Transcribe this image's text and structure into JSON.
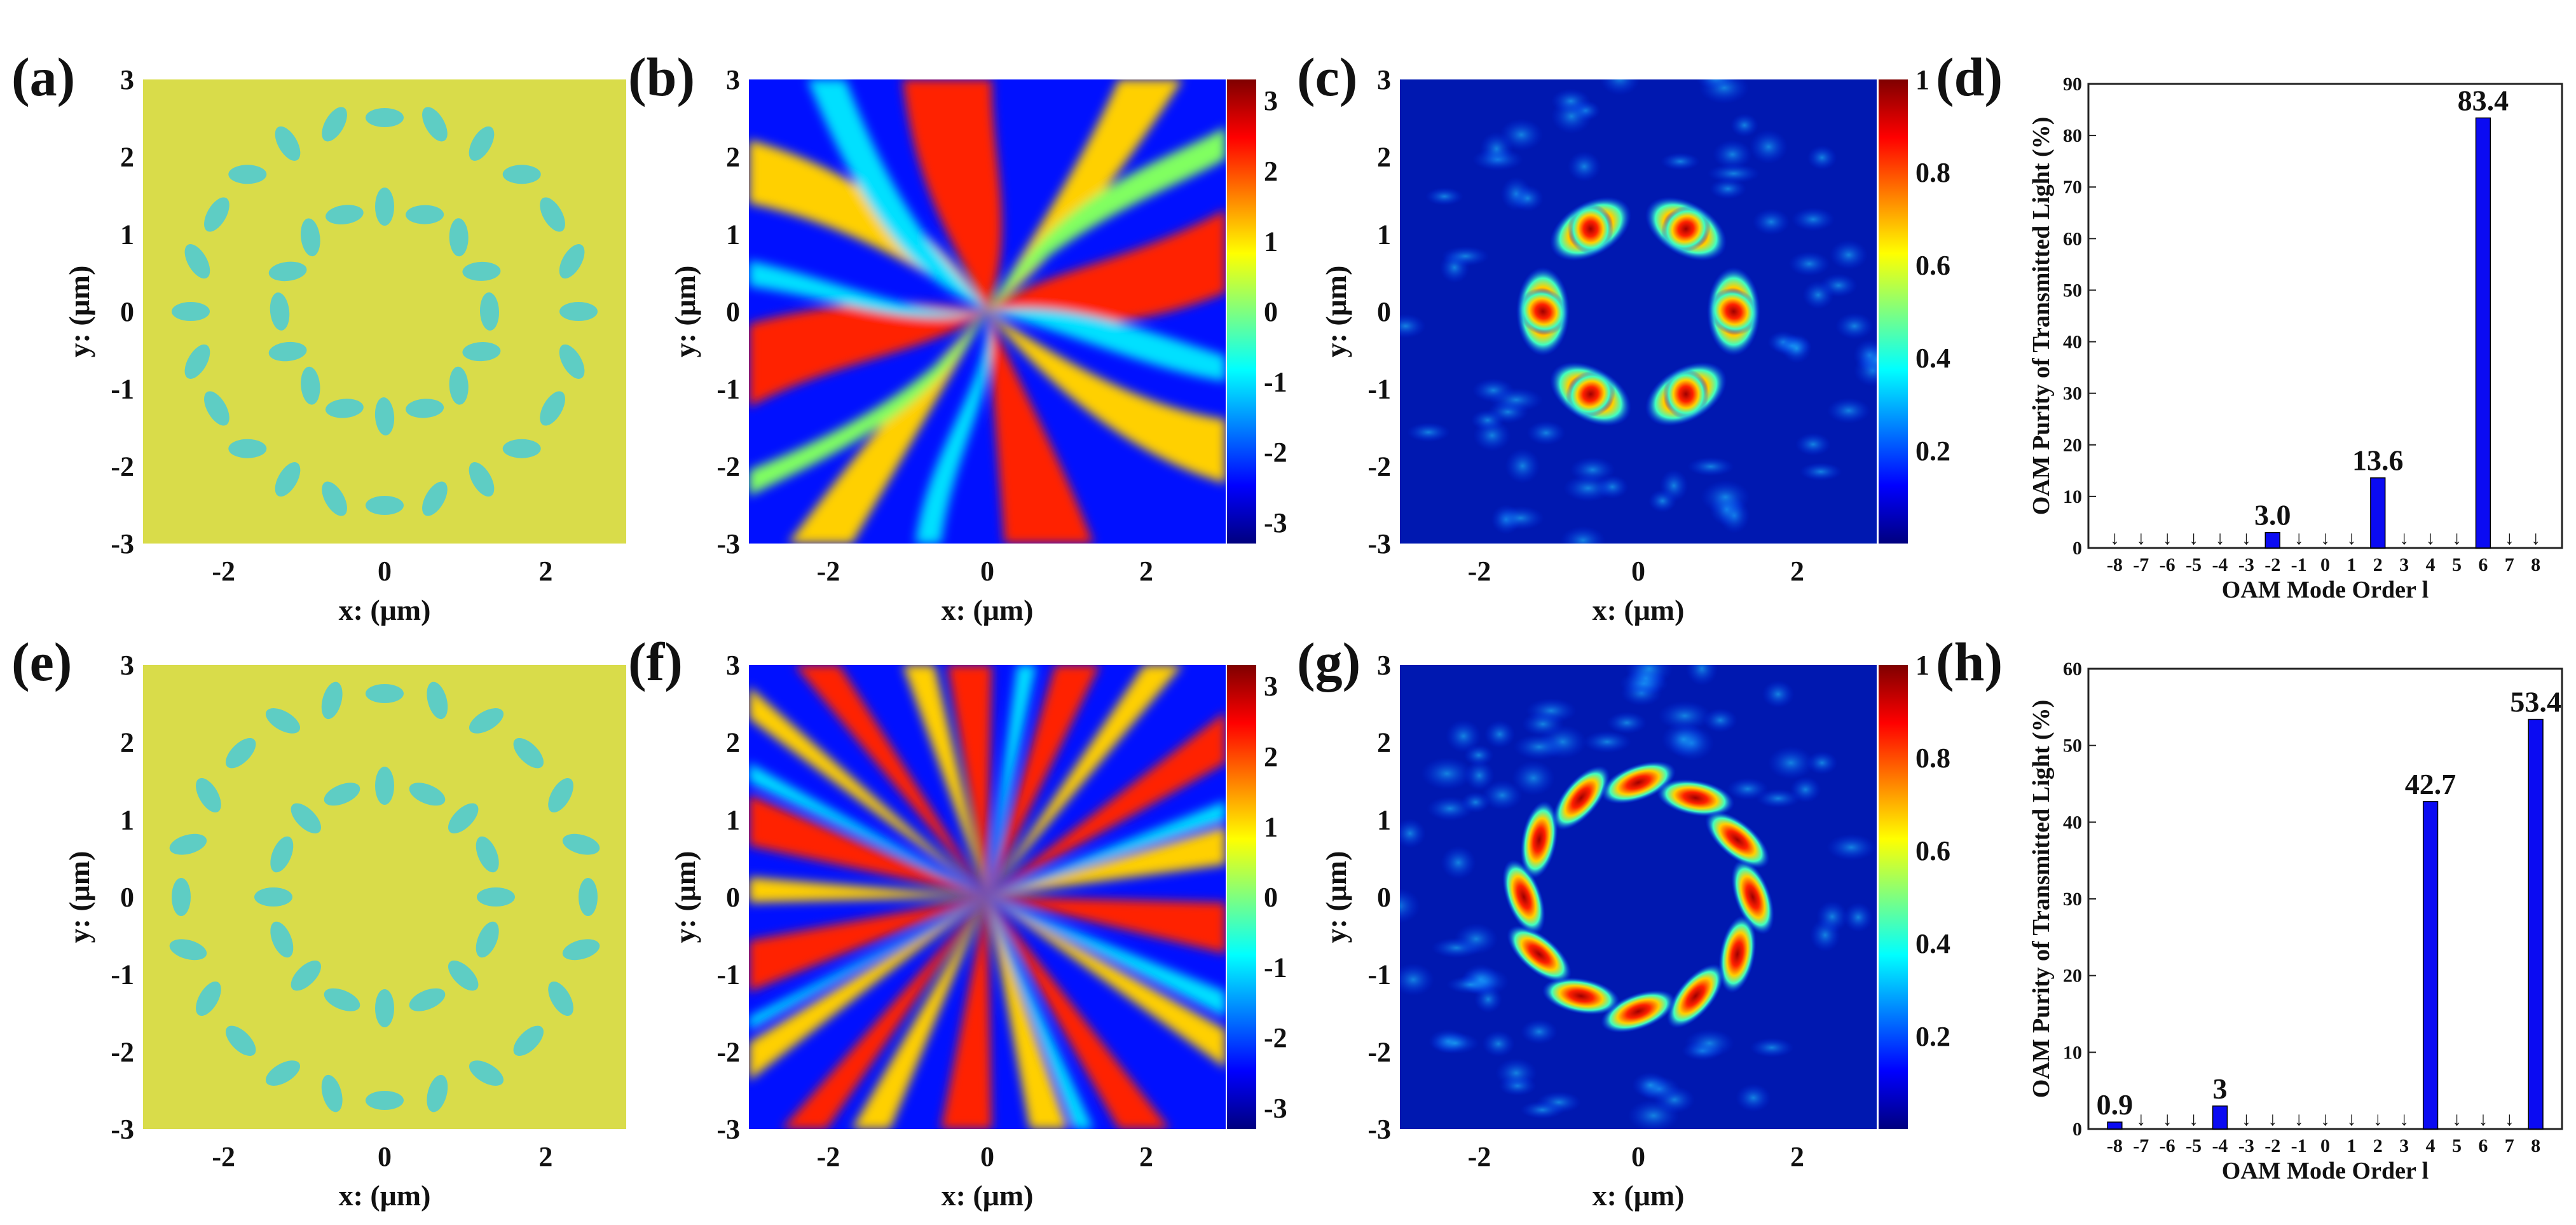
{
  "panels": {
    "a": "(a)",
    "b": "(b)",
    "c": "(c)",
    "d": "(d)",
    "e": "(e)",
    "f": "(f)",
    "g": "(g)",
    "h": "(h)"
  },
  "axes": {
    "xlabel": "x: (μm)",
    "ylabel": "y: (μm)",
    "xticks": [
      "-2",
      "0",
      "2"
    ],
    "yticks": [
      "3",
      "2",
      "1",
      "0",
      "-1",
      "-2",
      "-3"
    ]
  },
  "colorbars": {
    "phase_ticks": [
      "3",
      "2",
      "1",
      "0",
      "-1",
      "-2",
      "-3"
    ],
    "intensity_ticks": [
      "1",
      "0.8",
      "0.6",
      "0.4",
      "0.2"
    ]
  },
  "colors": {
    "substrate": "#d9dc4a",
    "nanostructure": "#5ecdc4",
    "bar": "#0b0bf2",
    "jet_dark_blue": "#00007f",
    "jet_red": "#ff2000"
  },
  "chart_data": [
    {
      "type": "bar",
      "panel": "(d)",
      "categories": [
        "-8",
        "-7",
        "-6",
        "-5",
        "-4",
        "-3",
        "-2",
        "-1",
        "0",
        "1",
        "2",
        "3",
        "4",
        "5",
        "6",
        "7",
        "8"
      ],
      "values": [
        0,
        0,
        0,
        0,
        0,
        0,
        3.0,
        0,
        0,
        0,
        13.6,
        0,
        0,
        0,
        83.4,
        0,
        0
      ],
      "value_labels": [
        "",
        "",
        "",
        "",
        "",
        "",
        "3.0",
        "",
        "",
        "",
        "13.6",
        "",
        "",
        "",
        "83.4",
        "",
        ""
      ],
      "xlabel": "OAM  Mode  Order  l",
      "ylabel": "OAM  Purity  of  Transmitted  Light  (%)",
      "ylim": [
        0,
        90
      ],
      "yticks": [
        "0",
        "10",
        "20",
        "30",
        "40",
        "50",
        "60",
        "70",
        "80",
        "90"
      ]
    },
    {
      "type": "bar",
      "panel": "(h)",
      "categories": [
        "-8",
        "-7",
        "-6",
        "-5",
        "-4",
        "-3",
        "-2",
        "-1",
        "0",
        "1",
        "2",
        "3",
        "4",
        "5",
        "6",
        "7",
        "8"
      ],
      "values": [
        0.9,
        0,
        0,
        0,
        3,
        0,
        0,
        0,
        0,
        0,
        0,
        0,
        42.7,
        0,
        0,
        0,
        53.4
      ],
      "value_labels": [
        "0.9",
        "",
        "",
        "",
        "3",
        "",
        "",
        "",
        "",
        "",
        "",
        "",
        "42.7",
        "",
        "",
        "",
        "53.4"
      ],
      "xlabel": "OAM  Mode  Order  l",
      "ylabel": "OAM  Purity  of  Transmitted  Light  (%)",
      "ylim": [
        0,
        60
      ],
      "yticks": [
        "0",
        "10",
        "20",
        "30",
        "40",
        "50",
        "60"
      ]
    }
  ]
}
